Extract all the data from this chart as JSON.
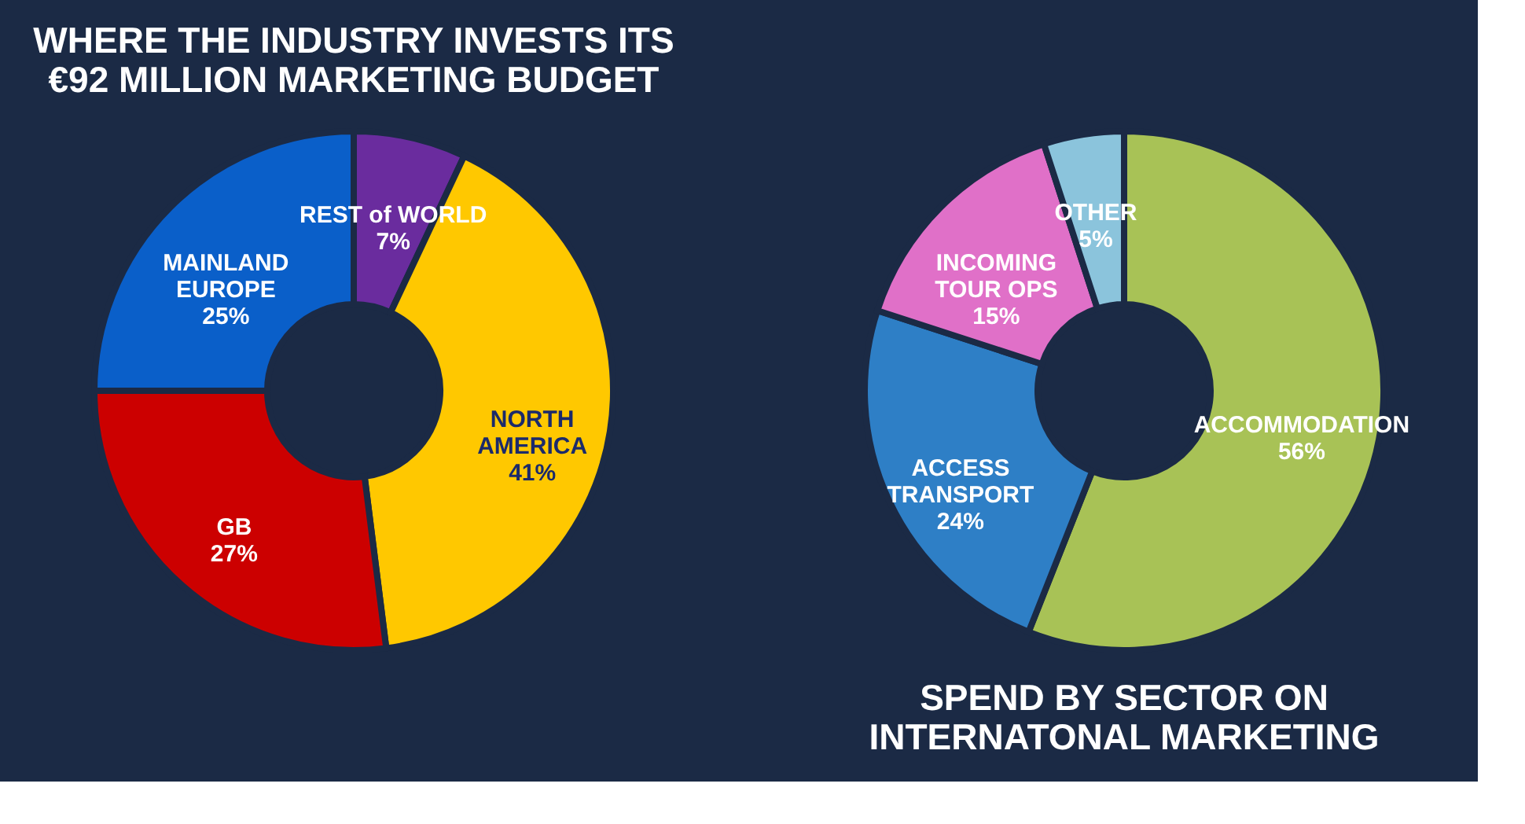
{
  "chart_data": [
    {
      "type": "donut",
      "title": "WHERE THE INDUSTRY INVESTS ITS\n€92 MILLION MARKETING BUDGET",
      "categories": [
        "REST of WORLD",
        "NORTH\nAMERICA",
        "GB",
        "MAINLAND\nEUROPE"
      ],
      "values": [
        7,
        41,
        27,
        25
      ],
      "colors": [
        "#6a2c9e",
        "#ffc800",
        "#cc0000",
        "#0a5fc9"
      ],
      "value_labels": [
        "7%",
        "41%",
        "27%",
        "25%"
      ],
      "legend": false
    },
    {
      "type": "donut",
      "title": "SPEND BY SECTOR ON\nINTERNATONAL MARKETING",
      "categories": [
        "ACCOMMODATION",
        "ACCESS\nTRANSPORT",
        "INCOMING\nTOUR OPS",
        "OTHER"
      ],
      "values": [
        56,
        24,
        15,
        5
      ],
      "colors": [
        "#a8c256",
        "#2e7fc6",
        "#e070c8",
        "#8bc4dc"
      ],
      "value_labels": [
        "56%",
        "24%",
        "15%",
        "5%"
      ],
      "legend": false
    }
  ]
}
